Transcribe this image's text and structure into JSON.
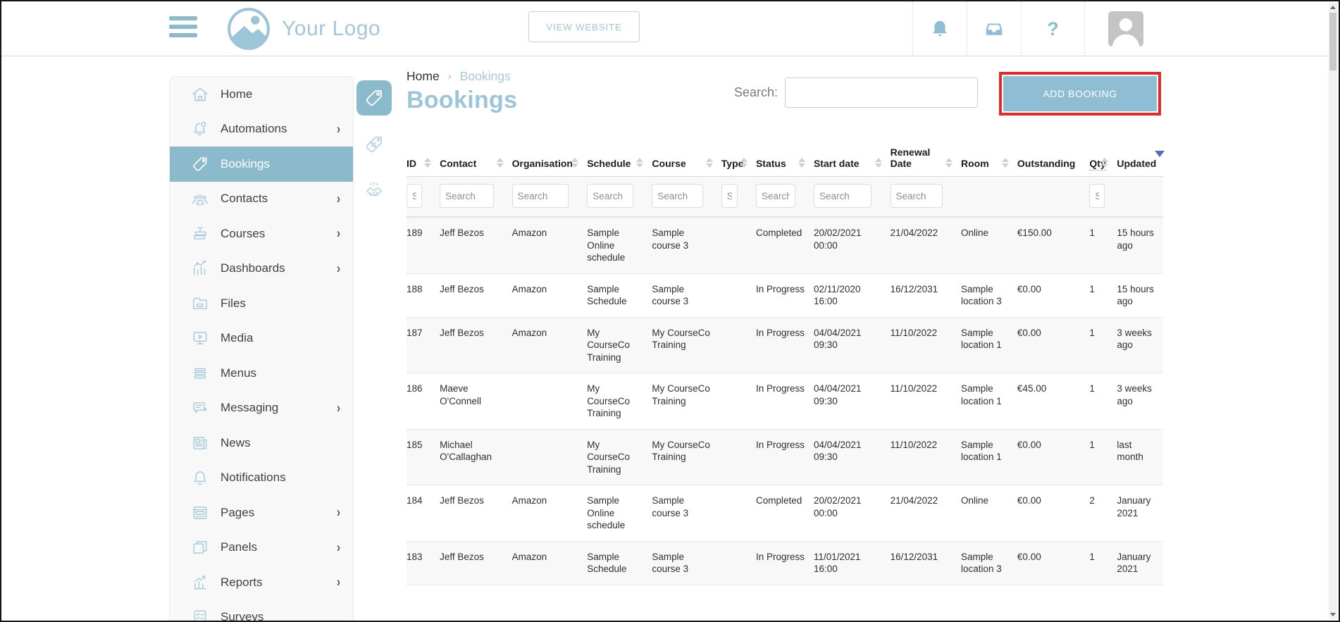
{
  "header": {
    "logo_text": "Your Logo",
    "view_website_label": "VIEW WEBSITE",
    "help_glyph": "?"
  },
  "sidebar": {
    "items": [
      {
        "label": "Home",
        "icon": "home",
        "chevron": false,
        "active": false
      },
      {
        "label": "Automations",
        "icon": "bellb",
        "chevron": true,
        "active": false
      },
      {
        "label": "Bookings",
        "icon": "tag",
        "chevron": false,
        "active": true
      },
      {
        "label": "Contacts",
        "icon": "people",
        "chevron": true,
        "active": false
      },
      {
        "label": "Courses",
        "icon": "books",
        "chevron": true,
        "active": false
      },
      {
        "label": "Dashboards",
        "icon": "chart",
        "chevron": true,
        "active": false
      },
      {
        "label": "Files",
        "icon": "folder",
        "chevron": false,
        "active": false
      },
      {
        "label": "Media",
        "icon": "monitor",
        "chevron": false,
        "active": false
      },
      {
        "label": "Menus",
        "icon": "lines",
        "chevron": false,
        "active": false
      },
      {
        "label": "Messaging",
        "icon": "message",
        "chevron": true,
        "active": false
      },
      {
        "label": "News",
        "icon": "news",
        "chevron": false,
        "active": false
      },
      {
        "label": "Notifications",
        "icon": "bell",
        "chevron": false,
        "active": false
      },
      {
        "label": "Pages",
        "icon": "page",
        "chevron": true,
        "active": false
      },
      {
        "label": "Panels",
        "icon": "panels",
        "chevron": true,
        "active": false
      },
      {
        "label": "Reports",
        "icon": "report",
        "chevron": true,
        "active": false
      },
      {
        "label": "Surveys",
        "icon": "survey",
        "chevron": false,
        "active": false
      }
    ]
  },
  "subnav": {
    "items": [
      {
        "icon": "tag",
        "name": "bookings",
        "active": true
      },
      {
        "icon": "tagpc",
        "name": "promotions",
        "active": false
      },
      {
        "icon": "hands",
        "name": "deals",
        "active": false
      }
    ]
  },
  "breadcrumb": {
    "home": "Home",
    "separator": "›",
    "current": "Bookings"
  },
  "page": {
    "title": "Bookings"
  },
  "toolbar": {
    "search_label": "Search:",
    "search_value": "",
    "add_button": "ADD BOOKING"
  },
  "table": {
    "search_placeholder": "Search",
    "columns": [
      {
        "label": "ID",
        "sort": "both",
        "filter": true
      },
      {
        "label": "Contact",
        "sort": "both",
        "filter": true
      },
      {
        "label": "Organisation",
        "sort": "both",
        "filter": true
      },
      {
        "label": "Schedule",
        "sort": "both",
        "filter": true
      },
      {
        "label": "Course",
        "sort": "both",
        "filter": true
      },
      {
        "label": "Type",
        "sort": "both",
        "filter": true
      },
      {
        "label": "Status",
        "sort": "both",
        "filter": true
      },
      {
        "label": "Start date",
        "sort": "both",
        "filter": true
      },
      {
        "label": "Renewal Date",
        "sort": "both",
        "filter": true
      },
      {
        "label": "Room",
        "sort": "both",
        "filter": false
      },
      {
        "label": "Outstanding",
        "sort": "none",
        "filter": false
      },
      {
        "label": "Qty",
        "sort": "both",
        "filter": true,
        "dotted": true
      },
      {
        "label": "Updated",
        "sort": "desc",
        "filter": false
      }
    ],
    "rows": [
      {
        "cells": [
          "189",
          "Jeff Bezos",
          "Amazon",
          "Sample Online schedule",
          "Sample course 3",
          "",
          "Completed",
          "20/02/2021 00:00",
          "21/04/2022",
          "Online",
          "€150.00",
          "1",
          "15 hours ago"
        ]
      },
      {
        "cells": [
          "188",
          "Jeff Bezos",
          "Amazon",
          "Sample Schedule",
          "Sample course 3",
          "",
          "In Progress",
          "02/11/2020 16:00",
          "16/12/2031",
          "Sample location 3",
          "€0.00",
          "1",
          "15 hours ago"
        ]
      },
      {
        "cells": [
          "187",
          "Jeff Bezos",
          "Amazon",
          "My CourseCo Training",
          "My CourseCo Training",
          "",
          "In Progress",
          "04/04/2021 09:30",
          "11/10/2022",
          "Sample location 1",
          "€0.00",
          "1",
          "3 weeks ago"
        ]
      },
      {
        "cells": [
          "186",
          "Maeve O'Connell",
          "",
          "My CourseCo Training",
          "My CourseCo Training",
          "",
          "In Progress",
          "04/04/2021 09:30",
          "11/10/2022",
          "Sample location 1",
          "€45.00",
          "1",
          "3 weeks ago"
        ]
      },
      {
        "cells": [
          "185",
          "Michael O'Callaghan",
          "",
          "My CourseCo Training",
          "My CourseCo Training",
          "",
          "In Progress",
          "04/04/2021 09:30",
          "11/10/2022",
          "Sample location 1",
          "€0.00",
          "1",
          "last month"
        ]
      },
      {
        "cells": [
          "184",
          "Jeff Bezos",
          "Amazon",
          "Sample Online schedule",
          "Sample course 3",
          "",
          "Completed",
          "20/02/2021 00:00",
          "21/04/2022",
          "Online",
          "€0.00",
          "2",
          "January 2021"
        ]
      },
      {
        "cells": [
          "183",
          "Jeff Bezos",
          "Amazon",
          "Sample Schedule",
          "Sample course 3",
          "",
          "In Progress",
          "11/01/2021 16:00",
          "16/12/2031",
          "Sample location 3",
          "€0.00",
          "1",
          "January 2021"
        ]
      }
    ]
  },
  "colors": {
    "accent": "#8fbdd3",
    "accent_light": "#a6cbdb",
    "active_item_bg": "#8cbacd",
    "highlight_red": "#e22a2e",
    "sort_active": "#5b68c0"
  }
}
